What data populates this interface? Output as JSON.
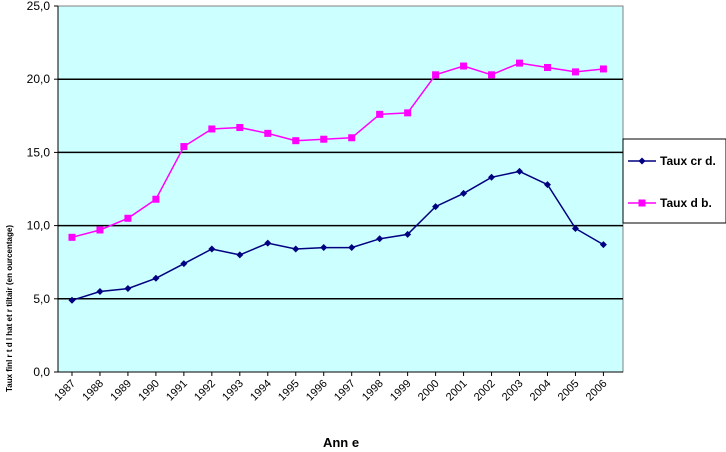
{
  "chart_data": {
    "type": "line",
    "xlabel": "Ann e",
    "ylabel": "Taux finl r t d l hat et r tiltair (en ourcentage)",
    "ylim": [
      0,
      25
    ],
    "yticks": [
      "0,0",
      "5,0",
      "10,0",
      "15,0",
      "20,0",
      "25,0"
    ],
    "categories": [
      "1987",
      "1988",
      "1989",
      "1990",
      "1991",
      "1992",
      "1993",
      "1994",
      "1995",
      "1996",
      "1997",
      "1998",
      "1999",
      "2000",
      "2001",
      "2002",
      "2003",
      "2004",
      "2005",
      "2006"
    ],
    "grid": true,
    "legend_position": "right",
    "plot_background": "#ccffff",
    "series": [
      {
        "name": "Taux cr d.",
        "color": "#000080",
        "marker": "diamond",
        "values": [
          4.9,
          5.5,
          5.7,
          6.4,
          7.4,
          8.4,
          8.0,
          8.8,
          8.4,
          8.5,
          8.5,
          9.1,
          9.4,
          11.3,
          12.2,
          13.3,
          13.7,
          12.8,
          9.8,
          8.7
        ]
      },
      {
        "name": "Taux d b.",
        "color": "#ff00ff",
        "marker": "square",
        "values": [
          9.2,
          9.7,
          10.5,
          11.8,
          15.4,
          16.6,
          16.7,
          16.3,
          15.8,
          15.9,
          16.0,
          17.6,
          17.7,
          20.3,
          20.9,
          20.3,
          21.1,
          20.8,
          20.5,
          20.7
        ]
      }
    ]
  }
}
